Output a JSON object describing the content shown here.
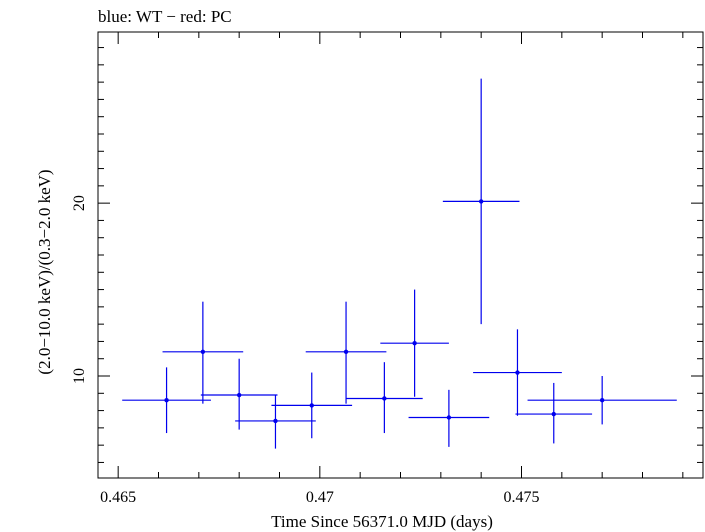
{
  "chart_data": {
    "type": "scatter",
    "title": "blue: WT − red: PC",
    "xlabel": "Time Since 56371.0 MJD (days)",
    "ylabel": "(2.0−10.0 keV)/(0.3−2.0 keV)",
    "xlim": [
      0.4645,
      0.4795
    ],
    "ylim": [
      4.1,
      29.9
    ],
    "x_ticks": [
      {
        "value": 0.465,
        "label": "0.465"
      },
      {
        "value": 0.47,
        "label": "0.47"
      },
      {
        "value": 0.475,
        "label": "0.475"
      }
    ],
    "y_ticks": [
      {
        "value": 10,
        "label": "10"
      },
      {
        "value": 20,
        "label": "20"
      }
    ],
    "grid": false,
    "series": [
      {
        "color": "#0000ee",
        "points": [
          {
            "x": 0.4662,
            "xerr": 0.0011,
            "y": 8.6,
            "yerr_lo": 1.9,
            "yerr_hi": 1.9
          },
          {
            "x": 0.4671,
            "xerr": 0.001,
            "y": 11.4,
            "yerr_lo": 3.0,
            "yerr_hi": 2.9
          },
          {
            "x": 0.468,
            "xerr": 0.00095,
            "y": 8.9,
            "yerr_lo": 2.0,
            "yerr_hi": 2.1
          },
          {
            "x": 0.4689,
            "xerr": 0.001,
            "y": 7.4,
            "yerr_lo": 1.6,
            "yerr_hi": 1.5
          },
          {
            "x": 0.4698,
            "xerr": 0.001,
            "y": 8.3,
            "yerr_lo": 1.9,
            "yerr_hi": 1.9
          },
          {
            "x": 0.47065,
            "xerr": 0.001,
            "y": 11.4,
            "yerr_lo": 3.0,
            "yerr_hi": 2.9
          },
          {
            "x": 0.4716,
            "xerr": 0.00095,
            "y": 8.7,
            "yerr_lo": 2.0,
            "yerr_hi": 2.1
          },
          {
            "x": 0.47235,
            "xerr": 0.00085,
            "y": 11.9,
            "yerr_lo": 3.1,
            "yerr_hi": 3.1
          },
          {
            "x": 0.4732,
            "xerr": 0.001,
            "y": 7.6,
            "yerr_lo": 1.7,
            "yerr_hi": 1.6
          },
          {
            "x": 0.474,
            "xerr": 0.00095,
            "y": 20.1,
            "yerr_lo": 7.1,
            "yerr_hi": 7.1
          },
          {
            "x": 0.4749,
            "xerr": 0.0011,
            "y": 10.2,
            "yerr_lo": 2.5,
            "yerr_hi": 2.5
          },
          {
            "x": 0.4758,
            "xerr": 0.00095,
            "y": 7.8,
            "yerr_lo": 1.7,
            "yerr_hi": 1.8
          },
          {
            "x": 0.477,
            "xerr": 0.00185,
            "y": 8.6,
            "yerr_lo": 1.4,
            "yerr_hi": 1.4
          }
        ]
      }
    ]
  }
}
